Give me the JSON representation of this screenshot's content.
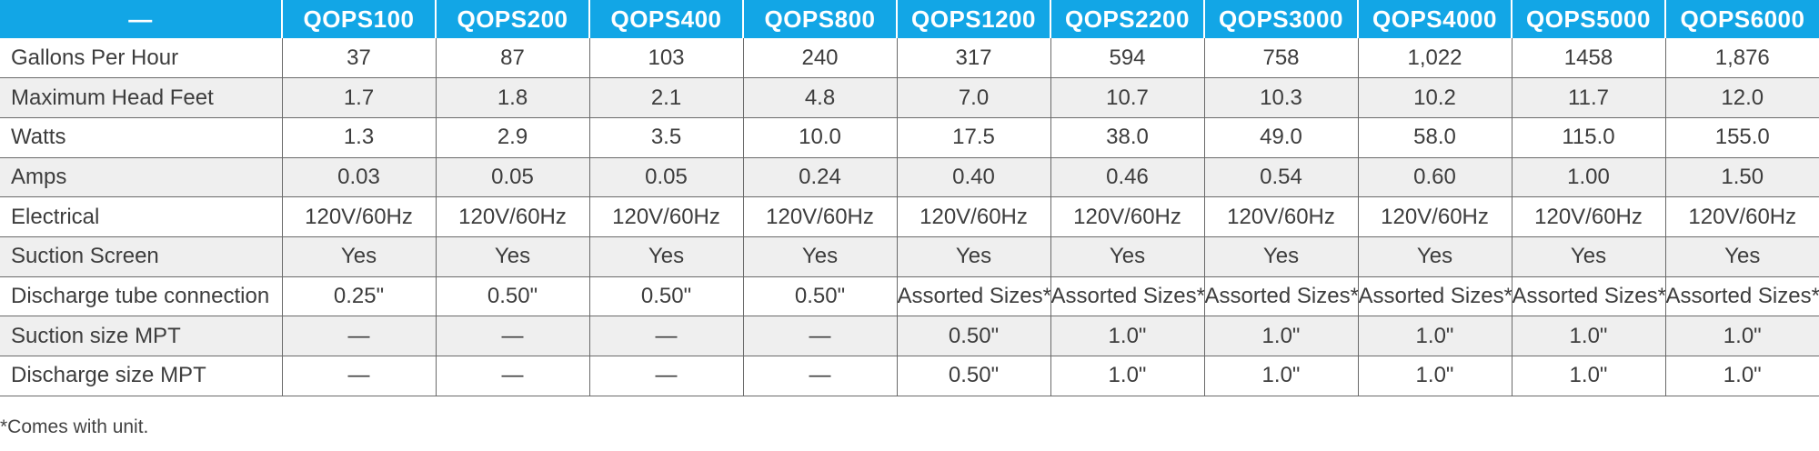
{
  "table": {
    "corner_label": "—",
    "models": [
      "QOPS100",
      "QOPS200",
      "QOPS400",
      "QOPS800",
      "QOPS1200",
      "QOPS2200",
      "QOPS3000",
      "QOPS4000",
      "QOPS5000",
      "QOPS6000"
    ],
    "rows": [
      {
        "label": "Gallons Per Hour",
        "cells": [
          "37",
          "87",
          "103",
          "240",
          "317",
          "594",
          "758",
          "1,022",
          "1458",
          "1,876"
        ]
      },
      {
        "label": "Maximum Head Feet",
        "cells": [
          "1.7",
          "1.8",
          "2.1",
          "4.8",
          "7.0",
          "10.7",
          "10.3",
          "10.2",
          "11.7",
          "12.0"
        ]
      },
      {
        "label": "Watts",
        "cells": [
          "1.3",
          "2.9",
          "3.5",
          "10.0",
          "17.5",
          "38.0",
          "49.0",
          "58.0",
          "115.0",
          "155.0"
        ]
      },
      {
        "label": "Amps",
        "cells": [
          "0.03",
          "0.05",
          "0.05",
          "0.24",
          "0.40",
          "0.46",
          "0.54",
          "0.60",
          "1.00",
          "1.50"
        ]
      },
      {
        "label": "Electrical",
        "cells": [
          "120V/60Hz",
          "120V/60Hz",
          "120V/60Hz",
          "120V/60Hz",
          "120V/60Hz",
          "120V/60Hz",
          "120V/60Hz",
          "120V/60Hz",
          "120V/60Hz",
          "120V/60Hz"
        ]
      },
      {
        "label": "Suction Screen",
        "cells": [
          "Yes",
          "Yes",
          "Yes",
          "Yes",
          "Yes",
          "Yes",
          "Yes",
          "Yes",
          "Yes",
          "Yes"
        ]
      },
      {
        "label": "Discharge tube connection",
        "cells": [
          "0.25\"",
          "0.50\"",
          "0.50\"",
          "0.50\"",
          "Assorted Sizes*",
          "Assorted Sizes*",
          "Assorted Sizes*",
          "Assorted Sizes*",
          "Assorted Sizes*",
          "Assorted Sizes*"
        ]
      },
      {
        "label": "Suction size MPT",
        "cells": [
          "—",
          "—",
          "—",
          "—",
          "0.50\"",
          "1.0\"",
          "1.0\"",
          "1.0\"",
          "1.0\"",
          "1.0\""
        ]
      },
      {
        "label": "Discharge size MPT",
        "cells": [
          "—",
          "—",
          "—",
          "—",
          "0.50\"",
          "1.0\"",
          "1.0\"",
          "1.0\"",
          "1.0\"",
          "1.0\""
        ]
      }
    ]
  },
  "footnote": "*Comes with unit.",
  "colors": {
    "header_bg": "#12a6e6",
    "header_text": "#ffffff",
    "shade_row": "#efefef",
    "grid_line": "#6a6a6a"
  }
}
